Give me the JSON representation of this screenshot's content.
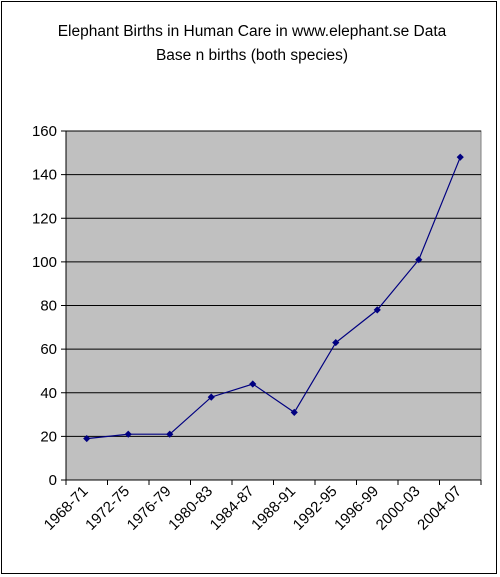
{
  "chart_data": {
    "type": "line",
    "title": "Elephant Births in Human Care in www.elephant.se Data Base n births (both species)",
    "xlabel": "",
    "ylabel": "",
    "categories": [
      "1968-71",
      "1972-75",
      "1976-79",
      "1980-83",
      "1984-87",
      "1988-91",
      "1992-95",
      "1996-99",
      "2000-03",
      "2004-07"
    ],
    "series": [
      {
        "values": [
          19,
          21,
          21,
          38,
          44,
          31,
          63,
          78,
          101,
          148
        ]
      }
    ],
    "ylim": [
      0,
      160
    ],
    "yticks": [
      0,
      20,
      40,
      60,
      80,
      100,
      120,
      140,
      160
    ],
    "grid": "horizontal",
    "legend": "none",
    "colors": {
      "plot_background": "#c0c0c0",
      "series_line": "#000080",
      "gridline": "#000000"
    }
  }
}
